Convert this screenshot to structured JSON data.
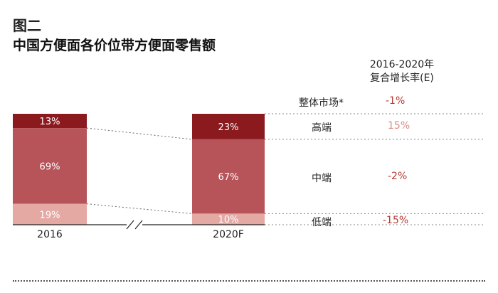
{
  "figure_label": "图二",
  "title": "中国方便面各价位带方便面零售额",
  "growth_header": [
    "2016-2020年",
    "复合增长率(E)"
  ],
  "overall": {
    "label": "整体市场*",
    "value": "-1%"
  },
  "segments": [
    {
      "label": "高端",
      "value": "15%"
    },
    {
      "label": "中端",
      "value": "-2%"
    },
    {
      "label": "低端",
      "value": "-15%"
    }
  ],
  "colors": {
    "high": "#8b1a1f",
    "mid": "#b7545a",
    "low": "#e5a9a4",
    "value_red": "#b83a35",
    "value_light": "#d98d86"
  },
  "chart_data": {
    "type": "bar",
    "stacked": true,
    "categories": [
      "2016",
      "2020F"
    ],
    "series": [
      {
        "name": "高端",
        "values": [
          13,
          23
        ],
        "labels": [
          "13%",
          "23%"
        ]
      },
      {
        "name": "中端",
        "values": [
          69,
          67
        ],
        "labels": [
          "69%",
          "67%"
        ]
      },
      {
        "name": "低端",
        "values": [
          19,
          10
        ],
        "labels": [
          "19%",
          "10%"
        ]
      }
    ],
    "ylim": [
      0,
      100
    ],
    "axis_break": true
  }
}
